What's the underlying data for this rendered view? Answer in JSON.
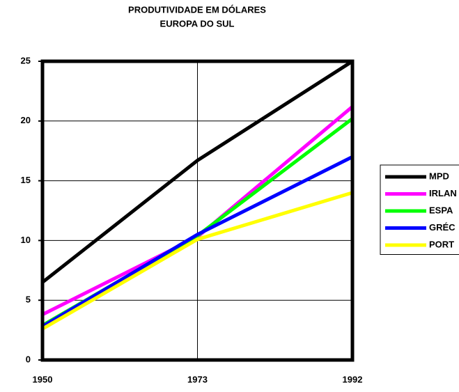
{
  "chart_data": {
    "type": "line",
    "title": "PRODUTIVIDADE EM DÓLARES",
    "subtitle": "EUROPA DO SUL",
    "categories": [
      "1950",
      "1973",
      "1992"
    ],
    "series": [
      {
        "name": "MPD",
        "color": "#000000",
        "values": [
          6.5,
          16.7,
          25
        ]
      },
      {
        "name": "IRLAN",
        "color": "#ff00ff",
        "values": [
          3.8,
          10.3,
          21.2
        ]
      },
      {
        "name": "ESPA",
        "color": "#00ff00",
        "values": [
          2.9,
          10.4,
          20.2
        ]
      },
      {
        "name": "GRÉC",
        "color": "#0000ff",
        "values": [
          2.8,
          10.5,
          17.0
        ]
      },
      {
        "name": "PORT",
        "color": "#ffff00",
        "values": [
          2.6,
          10.1,
          14.0
        ]
      }
    ],
    "ylim": [
      0,
      25
    ],
    "yticks": [
      0,
      5,
      10,
      15,
      20,
      25
    ],
    "grid": true,
    "legend": "right"
  }
}
